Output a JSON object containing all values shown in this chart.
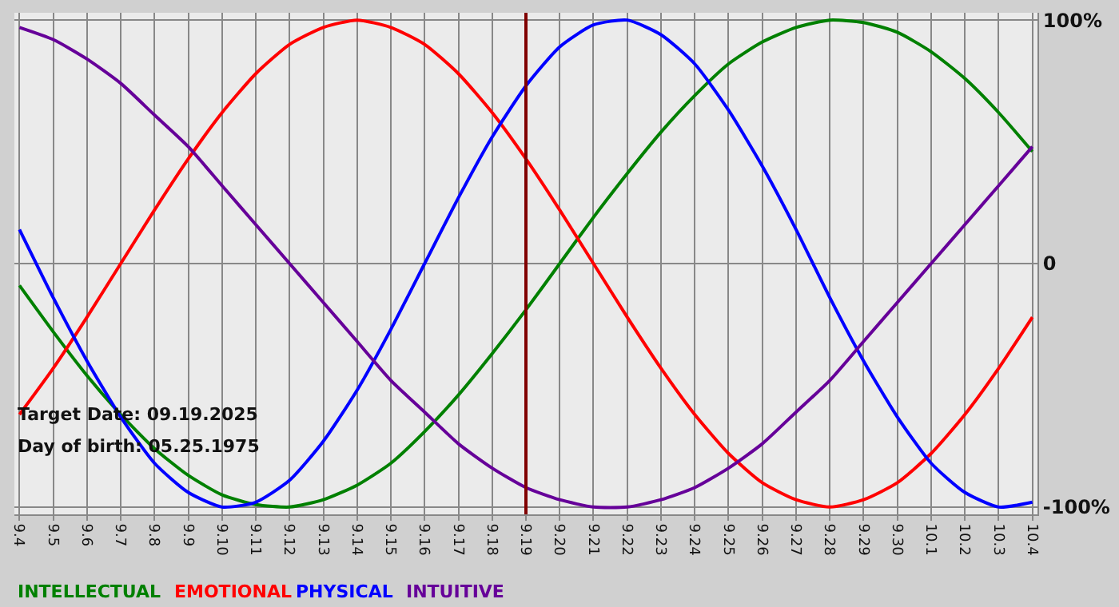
{
  "chart_data": {
    "type": "line",
    "categories": [
      "9.4",
      "9.5",
      "9.6",
      "9.7",
      "9.8",
      "9.9",
      "9.10",
      "9.11",
      "9.12",
      "9.13",
      "9.14",
      "9.15",
      "9.16",
      "9.17",
      "9.18",
      "9.19",
      "9.20",
      "9.21",
      "9.22",
      "9.23",
      "9.24",
      "9.25",
      "9.26",
      "9.27",
      "9.28",
      "9.29",
      "9.30",
      "10.1",
      "10.2",
      "10.3",
      "10.4"
    ],
    "series": [
      {
        "name": "INTELLECTUAL",
        "color": "#008000",
        "values": [
          -9,
          -28,
          -46,
          -62,
          -76,
          -87,
          -95,
          -99,
          -100,
          -97,
          -91,
          -82,
          -69,
          -54,
          -37,
          -19,
          0,
          19,
          37,
          54,
          69,
          82,
          91,
          97,
          100,
          99,
          95,
          87,
          76,
          62,
          46
        ]
      },
      {
        "name": "EMOTIONAL",
        "color": "#ff0000",
        "values": [
          -62,
          -43,
          -22,
          0,
          22,
          43,
          62,
          78,
          90,
          97,
          100,
          97,
          90,
          78,
          62,
          43,
          22,
          0,
          -22,
          -43,
          -62,
          -78,
          -90,
          -97,
          -100,
          -97,
          -90,
          -78,
          -62,
          -43,
          -22
        ]
      },
      {
        "name": "PHYSICAL",
        "color": "#0000ff",
        "values": [
          14,
          -14,
          -40,
          -63,
          -82,
          -94,
          -100,
          -98,
          -89,
          -73,
          -52,
          -27,
          0,
          27,
          52,
          73,
          89,
          98,
          100,
          94,
          82,
          63,
          40,
          14,
          -14,
          -40,
          -63,
          -82,
          -94,
          -100,
          -98
        ]
      },
      {
        "name": "INTUITIVE",
        "color": "#660099",
        "values": [
          97,
          92,
          84,
          74,
          61,
          48,
          32,
          16,
          0,
          -16,
          -32,
          -48,
          -61,
          -74,
          -84,
          -92,
          -97,
          -100,
          -100,
          -97,
          -92,
          -84,
          -74,
          -61,
          -48,
          -32,
          -16,
          0,
          16,
          32,
          48
        ]
      }
    ],
    "ylim": [
      -103,
      103
    ],
    "yticks": [
      {
        "value": 100,
        "label": "100%"
      },
      0,
      {
        "value": -100,
        "label": "-100%"
      }
    ],
    "grid": true,
    "legend": false,
    "marker": "none",
    "line_style": "solid",
    "ref_lines": [
      {
        "axis": "x",
        "value": "9.19",
        "label": null,
        "color": "#800000"
      }
    ],
    "annotations": [
      "Target Date: 09.19.2025",
      "Day of birth: 05.25.1975"
    ]
  }
}
